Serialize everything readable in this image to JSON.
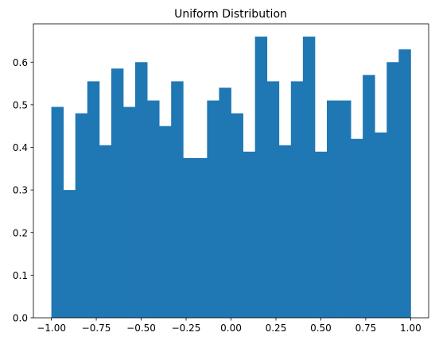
{
  "chart_data": {
    "type": "bar",
    "title": "Uniform Distribution",
    "xlabel": "",
    "ylabel": "",
    "xlim": [
      -1.1,
      1.1
    ],
    "ylim": [
      0,
      0.69
    ],
    "x_ticks": [
      -1.0,
      -0.75,
      -0.5,
      -0.25,
      0.0,
      0.25,
      0.5,
      0.75,
      1.0
    ],
    "x_tick_labels": [
      "−1.00",
      "−0.75",
      "−0.50",
      "−0.25",
      "0.00",
      "0.25",
      "0.50",
      "0.75",
      "1.00"
    ],
    "y_ticks": [
      0.0,
      0.1,
      0.2,
      0.3,
      0.4,
      0.5,
      0.6
    ],
    "y_tick_labels": [
      "0.0",
      "0.1",
      "0.2",
      "0.3",
      "0.4",
      "0.5",
      "0.6"
    ],
    "bin_range": [
      -1.0,
      1.0
    ],
    "bins": 30,
    "values": [
      0.495,
      0.3,
      0.48,
      0.555,
      0.405,
      0.585,
      0.495,
      0.6,
      0.51,
      0.45,
      0.555,
      0.375,
      0.375,
      0.51,
      0.54,
      0.48,
      0.39,
      0.66,
      0.555,
      0.405,
      0.555,
      0.66,
      0.39,
      0.51,
      0.51,
      0.42,
      0.57,
      0.435,
      0.6,
      0.63
    ],
    "color": "#1f77b4",
    "grid": false,
    "legend": "none"
  }
}
